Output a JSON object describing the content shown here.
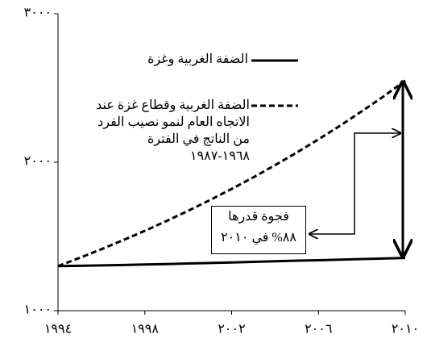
{
  "chart_data": {
    "type": "line",
    "x": [
      1994,
      1995,
      1996,
      1997,
      1998,
      1999,
      2000,
      2001,
      2002,
      2003,
      2004,
      2005,
      2006,
      2007,
      2008,
      2009,
      2010
    ],
    "series": [
      {
        "name": "الضفة الغربية وغزة",
        "color": "#000000",
        "dash": false,
        "values": [
          1300,
          1302,
          1305,
          1308,
          1311,
          1314,
          1318,
          1321,
          1325,
          1329,
          1333,
          1337,
          1340,
          1344,
          1348,
          1351,
          1355
        ]
      },
      {
        "name": "الضفة الغربية وقطاع غزة عند الاتجاه العام لنمو نصيب الفرد من الناتج في الفترة ١٩٦٨-١٩٨٧",
        "color": "#000000",
        "dash": true,
        "values": [
          1300,
          1356,
          1414,
          1475,
          1538,
          1604,
          1673,
          1745,
          1820,
          1898,
          1980,
          2065,
          2154,
          2246,
          2343,
          2443,
          2550
        ]
      }
    ],
    "annotation": [
      "فجوة قدرها",
      "٨٨% في ٢٠١٠"
    ],
    "xlim": [
      1994,
      2010
    ],
    "xticks": [
      {
        "value": 1994,
        "label": "١٩٩٤"
      },
      {
        "value": 1998,
        "label": "١٩٩٨"
      },
      {
        "value": 2002,
        "label": "٢٠٠٢"
      },
      {
        "value": 2006,
        "label": "٢٠٠٦"
      },
      {
        "value": 2010,
        "label": "٢٠١٠"
      }
    ],
    "ylim": [
      1000,
      3000
    ],
    "yticks": [
      {
        "value": 1000,
        "label": "١٠٠٠"
      },
      {
        "value": 2000,
        "label": "٢٠٠٠"
      },
      {
        "value": 3000,
        "label": "٣٠٠٠"
      }
    ],
    "grid": false
  }
}
